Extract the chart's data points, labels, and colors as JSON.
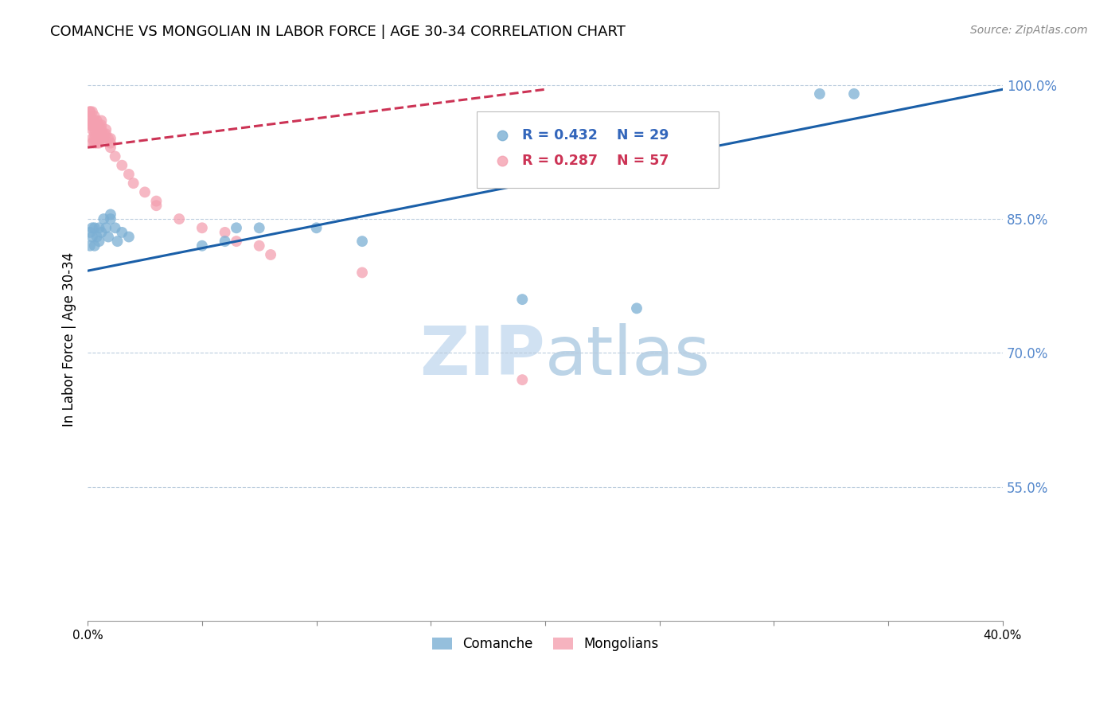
{
  "title": "COMANCHE VS MONGOLIAN IN LABOR FORCE | AGE 30-34 CORRELATION CHART",
  "source": "Source: ZipAtlas.com",
  "ylabel": "In Labor Force | Age 30-34",
  "xlim": [
    0.0,
    0.4
  ],
  "ylim": [
    0.4,
    1.03
  ],
  "xticks": [
    0.0,
    0.05,
    0.1,
    0.15,
    0.2,
    0.25,
    0.3,
    0.35,
    0.4
  ],
  "xticklabels": [
    "0.0%",
    "",
    "",
    "",
    "",
    "",
    "",
    "",
    "40.0%"
  ],
  "yticks_right": [
    0.55,
    0.7,
    0.85,
    1.0
  ],
  "ytick_right_labels": [
    "55.0%",
    "70.0%",
    "85.0%",
    "100.0%"
  ],
  "watermark": "ZIPatlas",
  "legend_blue_r": "R = 0.432",
  "legend_blue_n": "N = 29",
  "legend_pink_r": "R = 0.287",
  "legend_pink_n": "N = 57",
  "comanche_color": "#7BAFD4",
  "mongolian_color": "#F4A0B0",
  "trend_blue": "#1A5FA8",
  "trend_pink": "#CC3355",
  "comanche_x": [
    0.001,
    0.001,
    0.002,
    0.002,
    0.003,
    0.003,
    0.004,
    0.005,
    0.005,
    0.006,
    0.007,
    0.008,
    0.009,
    0.01,
    0.01,
    0.012,
    0.013,
    0.015,
    0.018,
    0.05,
    0.06,
    0.065,
    0.075,
    0.1,
    0.12,
    0.19,
    0.24,
    0.32,
    0.335
  ],
  "comanche_y": [
    0.835,
    0.82,
    0.84,
    0.83,
    0.84,
    0.82,
    0.83,
    0.84,
    0.825,
    0.835,
    0.85,
    0.84,
    0.83,
    0.85,
    0.855,
    0.84,
    0.825,
    0.835,
    0.83,
    0.82,
    0.825,
    0.84,
    0.84,
    0.84,
    0.825,
    0.76,
    0.75,
    0.99,
    0.99
  ],
  "mongolian_x": [
    0.001,
    0.001,
    0.001,
    0.001,
    0.001,
    0.002,
    0.002,
    0.002,
    0.002,
    0.002,
    0.002,
    0.003,
    0.003,
    0.003,
    0.003,
    0.003,
    0.003,
    0.003,
    0.004,
    0.004,
    0.004,
    0.004,
    0.004,
    0.004,
    0.005,
    0.005,
    0.005,
    0.005,
    0.005,
    0.006,
    0.006,
    0.006,
    0.006,
    0.006,
    0.007,
    0.007,
    0.008,
    0.008,
    0.009,
    0.01,
    0.01,
    0.01,
    0.012,
    0.015,
    0.018,
    0.02,
    0.025,
    0.03,
    0.03,
    0.04,
    0.05,
    0.06,
    0.065,
    0.075,
    0.08,
    0.12,
    0.19
  ],
  "mongolian_y": [
    0.97,
    0.97,
    0.965,
    0.96,
    0.955,
    0.97,
    0.96,
    0.955,
    0.95,
    0.94,
    0.935,
    0.965,
    0.96,
    0.955,
    0.95,
    0.945,
    0.94,
    0.935,
    0.96,
    0.955,
    0.95,
    0.945,
    0.94,
    0.935,
    0.955,
    0.95,
    0.945,
    0.94,
    0.935,
    0.96,
    0.955,
    0.95,
    0.945,
    0.94,
    0.945,
    0.94,
    0.95,
    0.945,
    0.94,
    0.94,
    0.935,
    0.93,
    0.92,
    0.91,
    0.9,
    0.89,
    0.88,
    0.87,
    0.865,
    0.85,
    0.84,
    0.835,
    0.825,
    0.82,
    0.81,
    0.79,
    0.67
  ],
  "comanche_trendline_x": [
    0.0,
    0.4
  ],
  "comanche_trendline_y": [
    0.792,
    0.995
  ],
  "mongolian_trendline_x": [
    0.0,
    0.2
  ],
  "mongolian_trendline_y": [
    0.93,
    0.995
  ]
}
